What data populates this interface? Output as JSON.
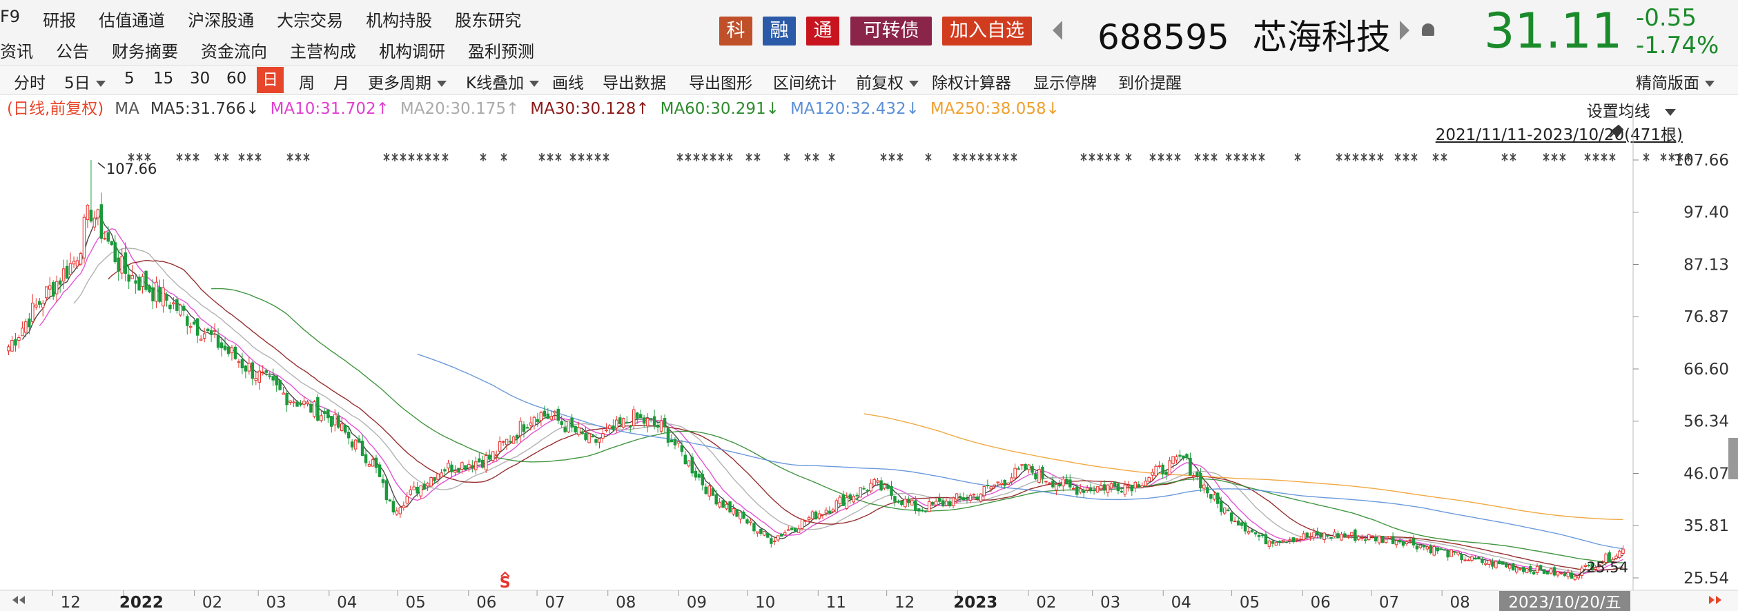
{
  "nav": {
    "row1": [
      "F9",
      "研报",
      "估值通道",
      "沪深股通",
      "大宗交易",
      "机构持股",
      "股东研究"
    ],
    "row2": [
      "资讯",
      "公告",
      "财务摘要",
      "资金流向",
      "主营构成",
      "机构调研",
      "盈利预测"
    ]
  },
  "badges": [
    {
      "label": "科",
      "color": "#c0502a"
    },
    {
      "label": "融",
      "color": "#2a5aa8"
    },
    {
      "label": "通",
      "color": "#c8141e"
    },
    {
      "label": "可转债",
      "color": "#8a2448"
    },
    {
      "label": "加入自选",
      "color": "#d23c1e"
    }
  ],
  "stock": {
    "code": "688595",
    "name": "芯海科技",
    "price": "31.11",
    "change": "-0.55",
    "change_pct": "-1.74%"
  },
  "toolbar": {
    "items": [
      "分时",
      "5日",
      "5",
      "15",
      "30",
      "60",
      "日",
      "周",
      "月",
      "更多周期",
      "K线叠加",
      "画线",
      "导出数据",
      "导出图形",
      "区间统计",
      "前复权",
      "除权计算器",
      "显示停牌",
      "到价提醒"
    ],
    "active": "日",
    "right": "精简版面"
  },
  "ma_legend": {
    "prefix": "(日线,前复权)",
    "prefix_color": "#e8462a",
    "ma": "MA",
    "items": [
      {
        "label": "MA5:31.766",
        "arrow": "↓",
        "color": "#333333"
      },
      {
        "label": "MA10:31.702",
        "arrow": "↑",
        "color": "#e040d0"
      },
      {
        "label": "MA20:30.175",
        "arrow": "↑",
        "color": "#aaaaaa"
      },
      {
        "label": "MA30:30.128",
        "arrow": "↑",
        "color": "#8b1a1a"
      },
      {
        "label": "MA60:30.291",
        "arrow": "↓",
        "color": "#2e8b2e"
      },
      {
        "label": "MA120:32.432",
        "arrow": "↓",
        "color": "#5b8fd8"
      },
      {
        "label": "MA250:38.058",
        "arrow": "↓",
        "color": "#f0a030"
      }
    ]
  },
  "settings_label": "设置均线",
  "range_label": "2021/11/11-2023/10/20(471根)",
  "current_date_label": "2023/10/20/五",
  "chart_data": {
    "type": "candlestick",
    "x_range": [
      "2021-11-11",
      "2023-10-20"
    ],
    "bar_count": 471,
    "ylim": [
      25.54,
      107.66
    ],
    "y_ticks": [
      "107.66",
      "97.40",
      "87.13",
      "76.87",
      "66.60",
      "56.34",
      "46.07",
      "35.81",
      "25.54"
    ],
    "x_ticks": [
      "12",
      "2022",
      "02",
      "03",
      "04",
      "05",
      "06",
      "07",
      "08",
      "09",
      "10",
      "11",
      "12",
      "2023",
      "02",
      "03",
      "04",
      "05",
      "06",
      "07",
      "08"
    ],
    "annotations": [
      {
        "label": "107.66",
        "note": "high",
        "date": "2021-12-17",
        "value": 107.66
      },
      {
        "label": "25.54",
        "note": "low",
        "date": "2023-09-27",
        "value": 25.54
      }
    ],
    "close_path": [
      [
        "2021-11-11",
        71
      ],
      [
        "2021-11-25",
        80
      ],
      [
        "2021-12-10",
        88
      ],
      [
        "2021-12-17",
        98
      ],
      [
        "2021-12-31",
        86
      ],
      [
        "2022-01-20",
        80
      ],
      [
        "2022-02-15",
        70
      ],
      [
        "2022-03-10",
        62
      ],
      [
        "2022-04-01",
        57
      ],
      [
        "2022-04-20",
        48
      ],
      [
        "2022-04-28",
        39
      ],
      [
        "2022-05-20",
        47
      ],
      [
        "2022-06-10",
        49
      ],
      [
        "2022-06-30",
        58
      ],
      [
        "2022-07-08",
        57
      ],
      [
        "2022-07-25",
        52
      ],
      [
        "2022-08-12",
        57
      ],
      [
        "2022-08-25",
        55
      ],
      [
        "2022-09-15",
        42
      ],
      [
        "2022-10-11",
        33
      ],
      [
        "2022-10-31",
        38
      ],
      [
        "2022-11-25",
        44
      ],
      [
        "2022-12-15",
        39
      ],
      [
        "2023-01-10",
        42
      ],
      [
        "2023-01-31",
        47
      ],
      [
        "2023-02-20",
        43
      ],
      [
        "2023-03-20",
        44
      ],
      [
        "2023-04-10",
        49
      ],
      [
        "2023-04-25",
        40
      ],
      [
        "2023-05-15",
        33
      ],
      [
        "2023-06-15",
        34
      ],
      [
        "2023-07-15",
        33
      ],
      [
        "2023-08-15",
        29
      ],
      [
        "2023-09-27",
        26
      ],
      [
        "2023-10-20",
        31
      ]
    ],
    "moving_averages": [
      {
        "name": "MA5",
        "color": "#333333",
        "last": 31.766
      },
      {
        "name": "MA10",
        "color": "#e040d0",
        "last": 31.702
      },
      {
        "name": "MA20",
        "color": "#aaaaaa",
        "last": 30.175
      },
      {
        "name": "MA30",
        "color": "#8b1a1a",
        "last": 30.128
      },
      {
        "name": "MA60",
        "color": "#2e8b2e",
        "last": 30.291
      },
      {
        "name": "MA120",
        "color": "#5b8fd8",
        "last": 32.432
      },
      {
        "name": "MA250",
        "color": "#f0a030",
        "last": 38.058
      }
    ],
    "up_color": "#e8302a",
    "down_color": "#1a9a3a",
    "grid": false
  }
}
